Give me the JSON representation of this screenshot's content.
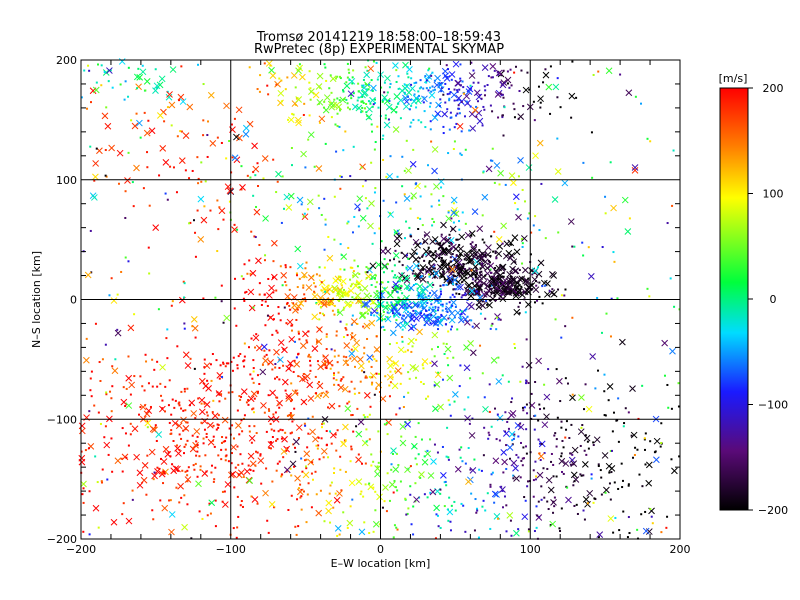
{
  "chart_data": {
    "type": "scatter",
    "title": "Tromsø 20141219 18:58:00–18:59:43",
    "subtitle": "RwPretec (8p) EXPERIMENTAL SKYMAP",
    "xlabel": "E–W location [km]",
    "ylabel": "N–S location [km]",
    "xlim": [
      -200,
      200
    ],
    "ylim": [
      -200,
      200
    ],
    "xticks": [
      -200,
      -100,
      0,
      100,
      200
    ],
    "yticks": [
      -200,
      -100,
      0,
      100,
      200
    ],
    "grid": true,
    "colorbar": {
      "label": "[m/s]",
      "min": -200,
      "max": 200,
      "ticks": [
        200,
        100,
        0,
        -100,
        -200
      ],
      "stops": [
        "#000000",
        "#5a0a78",
        "#1a1aff",
        "#00dcff",
        "#00ff3c",
        "#ffff00",
        "#ff8000",
        "#ff0000"
      ]
    },
    "clusters": [
      {
        "region": "north arc",
        "x_range": [
          -70,
          110
        ],
        "y_range": [
          150,
          200
        ],
        "velocity": "120 to -200 m/s (yellow-green to black, west to east)"
      },
      {
        "region": "upper left",
        "x_range": [
          -200,
          -60
        ],
        "y_range": [
          60,
          200
        ],
        "velocity": "about +150 to +200 m/s (red/orange)"
      },
      {
        "region": "center dark band",
        "x_range": [
          10,
          100
        ],
        "y_range": [
          0,
          60
        ],
        "velocity": "about -200 m/s (black/purple)"
      },
      {
        "region": "center",
        "x_range": [
          -60,
          60
        ],
        "y_range": [
          -60,
          30
        ],
        "velocity": "about -50 to +200 m/s (red to cyan)"
      },
      {
        "region": "lower left",
        "x_range": [
          -200,
          -20
        ],
        "y_range": [
          -200,
          -30
        ],
        "velocity": "about +200 m/s (red)"
      },
      {
        "region": "lower right",
        "x_range": [
          50,
          200
        ],
        "y_range": [
          -200,
          -70
        ],
        "velocity": "about -100 to -200 m/s (blue/black)"
      }
    ]
  }
}
